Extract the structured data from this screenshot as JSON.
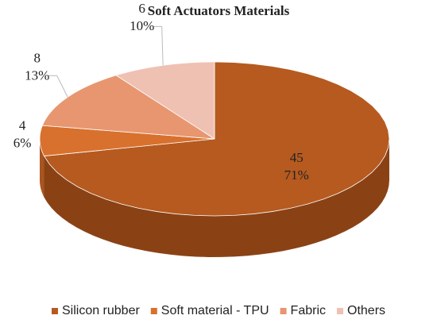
{
  "chart_data": {
    "type": "pie3d",
    "title": "Soft Actuators Materials",
    "categories": [
      "Silicon rubber",
      "Soft material - TPU",
      "Fabric",
      "Others"
    ],
    "values": [
      45,
      4,
      8,
      6
    ],
    "percent_labels": [
      "71%",
      "6%",
      "13%",
      "10%"
    ],
    "colors": [
      "#b65a20",
      "#d8712e",
      "#e89670",
      "#efc1b2"
    ],
    "side_colors": [
      "#8a4215",
      "#a8551f",
      "#b8704d",
      "#c0968a"
    ],
    "legend": "bottom"
  }
}
